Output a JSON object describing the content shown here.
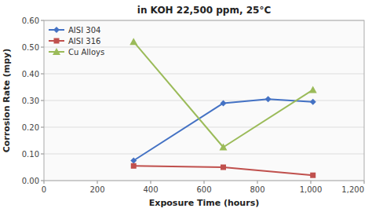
{
  "chart_data": {
    "type": "line",
    "title": "in KOH 22,500  ppm, 25°C",
    "x_label": "Exposure Time (hours)",
    "y_label": "Corrosion Rate (mpy)",
    "xlim": [
      0,
      1200
    ],
    "xticks": [
      0,
      200,
      400,
      600,
      800,
      {
        "value": 1000,
        "label": "1,000"
      },
      {
        "value": 1200,
        "label": "1,200"
      }
    ],
    "ylim": [
      0.0,
      0.6
    ],
    "yticks": [
      {
        "value": 0.0,
        "label": "0.00"
      },
      {
        "value": 0.1,
        "label": "0.10"
      },
      {
        "value": 0.2,
        "label": "0.20"
      },
      {
        "value": 0.3,
        "label": "0.30"
      },
      {
        "value": 0.4,
        "label": "0.40"
      },
      {
        "value": 0.5,
        "label": "0.50"
      },
      {
        "value": 0.6,
        "label": "0.60"
      }
    ],
    "grid": true,
    "legend": "upper left",
    "series": [
      {
        "name": "AISI 304",
        "color": "#4472C4",
        "marker": "diamond",
        "x": [
          336,
          672,
          840,
          1008
        ],
        "values": [
          0.075,
          0.29,
          0.305,
          0.295
        ]
      },
      {
        "name": "AISI 316",
        "color": "#C0504D",
        "marker": "square",
        "x": [
          336,
          672,
          1008
        ],
        "values": [
          0.055,
          0.05,
          0.02
        ]
      },
      {
        "name": "Cu Alloys",
        "color": "#9BBB59",
        "marker": "triangle",
        "x": [
          336,
          672,
          1008
        ],
        "values": [
          0.52,
          0.125,
          0.34
        ]
      }
    ]
  }
}
